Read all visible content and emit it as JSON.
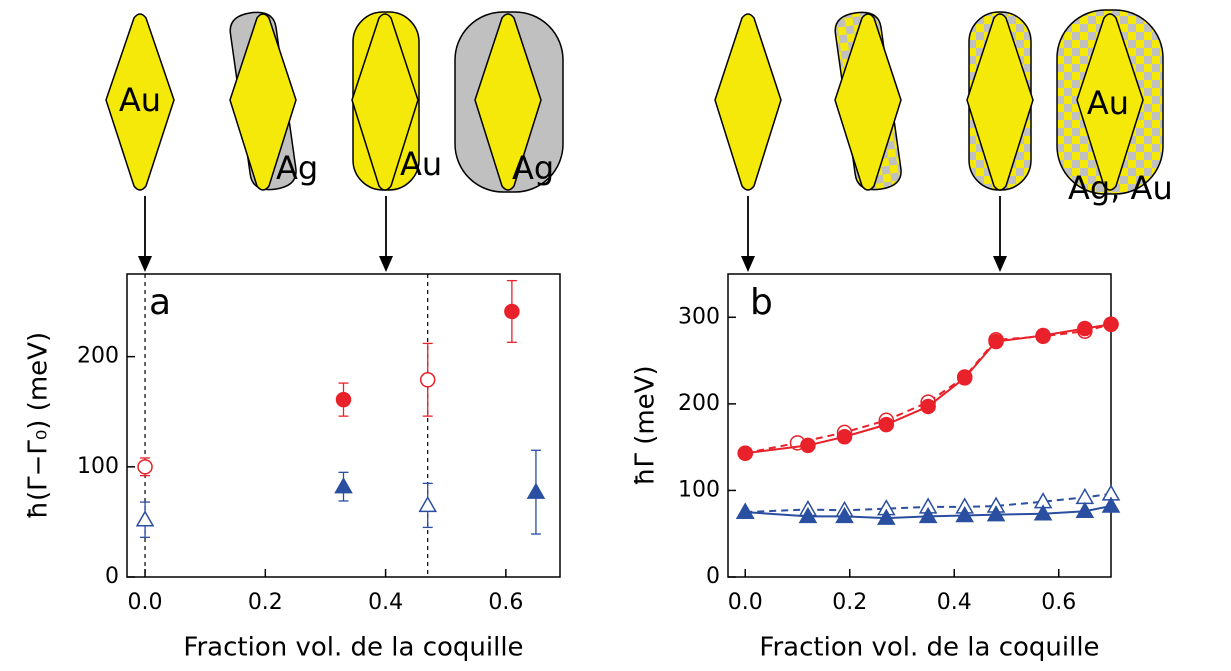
{
  "chart_data": [
    {
      "type": "scatter",
      "panel": "a",
      "x_label": "Fraction vol. de la coquille",
      "y_label": "ħ(Γ−Γ₀) (meV)",
      "xlim": [
        -0.03,
        0.69
      ],
      "ylim": [
        0,
        275
      ],
      "xticks": [
        {
          "value": 0,
          "label": "0.0"
        },
        0.2,
        0.4,
        0.6
      ],
      "yticks": [
        0,
        100,
        200
      ],
      "vlines": [
        0,
        0.47
      ],
      "series": [
        {
          "color": "#e8212a",
          "marker": "circle",
          "filled": false,
          "x": [
            0,
            0.47
          ],
          "values": [
            100,
            179
          ],
          "errors": [
            8,
            33
          ]
        },
        {
          "color": "#e8212a",
          "marker": "circle",
          "filled": true,
          "x": [
            0.33,
            0.61
          ],
          "values": [
            161,
            241
          ],
          "errors": [
            15,
            28
          ]
        },
        {
          "color": "#2a4ea0",
          "marker": "triangle",
          "filled": false,
          "x": [
            0,
            0.47
          ],
          "values": [
            52,
            65
          ],
          "errors": [
            16,
            20
          ]
        },
        {
          "color": "#2a4ea0",
          "marker": "triangle",
          "filled": true,
          "x": [
            0.33,
            0.65
          ],
          "values": [
            82,
            77
          ],
          "errors": [
            13,
            38
          ]
        }
      ]
    },
    {
      "type": "line",
      "panel": "b",
      "x_label": "Fraction vol. de la coquille",
      "y_label": "ħΓ (meV)",
      "xlim": [
        -0.033,
        0.7
      ],
      "ylim": [
        0,
        350
      ],
      "xticks": [
        {
          "value": 0,
          "label": "0.0"
        },
        0.2,
        0.4,
        0.6
      ],
      "yticks": [
        0,
        100,
        200,
        300
      ],
      "series": [
        {
          "color": "#e8212a",
          "marker": "circle",
          "filled": false,
          "dashed": true,
          "x": [
            0,
            0.1,
            0.19,
            0.27,
            0.35,
            0.42,
            0.48,
            0.57,
            0.65,
            0.7
          ],
          "values": [
            143,
            155,
            167,
            181,
            202,
            231,
            274,
            278,
            284,
            292
          ]
        },
        {
          "color": "#e8212a",
          "marker": "circle",
          "filled": true,
          "dashed": false,
          "x": [
            0,
            0.12,
            0.19,
            0.27,
            0.35,
            0.42,
            0.48,
            0.57,
            0.65,
            0.7
          ],
          "values": [
            143,
            152,
            162,
            176,
            197,
            230,
            272,
            279,
            287,
            292
          ]
        },
        {
          "color": "#2a4ea0",
          "marker": "triangle",
          "filled": false,
          "dashed": true,
          "x": [
            0,
            0.12,
            0.19,
            0.27,
            0.35,
            0.42,
            0.48,
            0.57,
            0.65,
            0.7
          ],
          "values": [
            75,
            78,
            77,
            79,
            81,
            81,
            82,
            87,
            92,
            96
          ]
        },
        {
          "color": "#2a4ea0",
          "marker": "triangle",
          "filled": true,
          "dashed": false,
          "x": [
            0,
            0.12,
            0.19,
            0.27,
            0.35,
            0.42,
            0.48,
            0.57,
            0.65,
            0.7
          ],
          "values": [
            75,
            70,
            70,
            68,
            70,
            71,
            72,
            73,
            76,
            82
          ]
        }
      ]
    }
  ],
  "illustrations": {
    "a": [
      "Au",
      "Ag",
      "Au",
      "Ag"
    ],
    "b": [
      "Au",
      "Ag, Au"
    ]
  }
}
